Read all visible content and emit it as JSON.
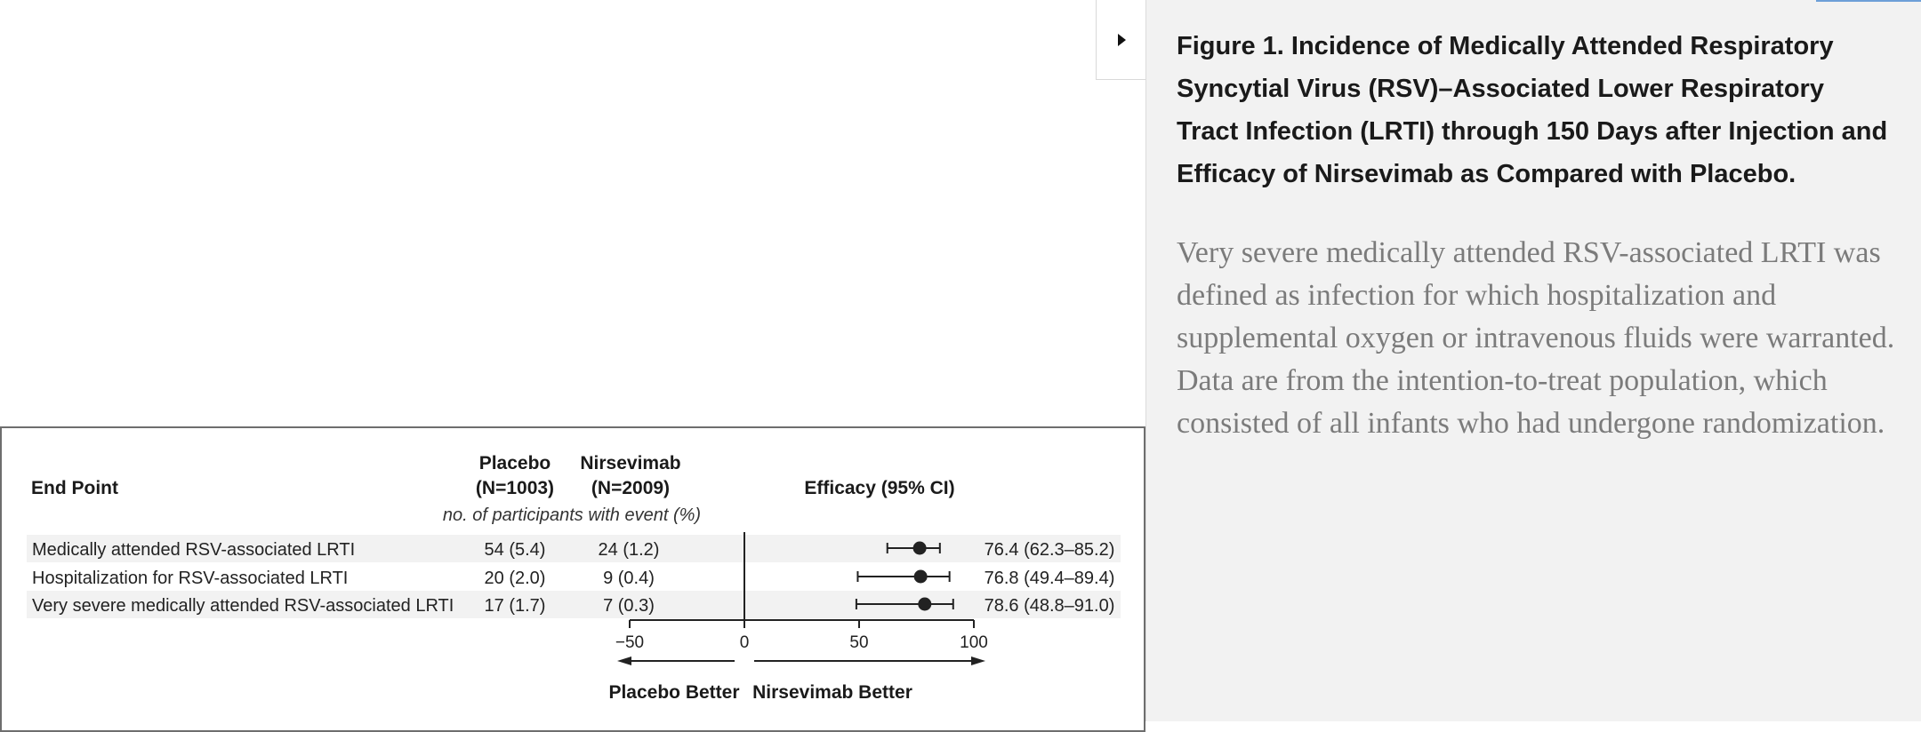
{
  "caption": {
    "title": "Figure 1. Incidence of Medically Attended Respiratory Syncytial Virus (RSV)–Associated Lower Respiratory Tract Infection (LRTI) through 150 Days after Injection and Efficacy of Nirsevimab as Compared with Placebo.",
    "body": "Very severe medically attended RSV-associated LRTI was defined as infection for which hospitalization and supplemental oxygen or intravenous fluids were warranted. Data are from the intention-to-treat population, which consisted of all infants who had undergone randomization."
  },
  "toggle": {
    "icon": "chevron-right-icon"
  },
  "colors": {
    "panel_bg": "#f2f2f2",
    "accent": "#6d9fd8",
    "row_shade": "#f2f2f2",
    "marker": "#222222"
  },
  "table": {
    "col_endpoint": "End Point",
    "col_placebo": [
      "Placebo",
      "(N=1003)"
    ],
    "col_nirsevimab": [
      "Nirsevimab",
      "(N=2009)"
    ],
    "col_efficacy": "Efficacy (95% CI)",
    "subheader": "no. of participants with event (%)",
    "rows": [
      {
        "endpoint": "Medically attended RSV-associated LRTI",
        "placebo": "54 (5.4)",
        "nirsevimab": "24 (1.2)",
        "efficacy_text": "76.4 (62.3–85.2)"
      },
      {
        "endpoint": "Hospitalization for RSV-associated LRTI",
        "placebo": "20 (2.0)",
        "nirsevimab": "9 (0.4)",
        "efficacy_text": "76.8 (49.4–89.4)"
      },
      {
        "endpoint": "Very severe medically attended RSV-associated LRTI",
        "placebo": "17 (1.7)",
        "nirsevimab": "7 (0.3)",
        "efficacy_text": "78.6 (48.8–91.0)"
      }
    ],
    "axis_ticks": [
      "−50",
      "0",
      "50",
      "100"
    ],
    "label_left": "Placebo Better",
    "label_right": "Nirsevimab Better"
  },
  "chart_data": {
    "type": "scatter",
    "categories": [
      "Medically attended RSV-associated LRTI",
      "Hospitalization for RSV-associated LRTI",
      "Very severe medically attended RSV-associated LRTI"
    ],
    "estimates": [
      76.4,
      76.8,
      78.6
    ],
    "ci_low": [
      62.3,
      49.4,
      48.8
    ],
    "ci_high": [
      85.2,
      89.4,
      91.0
    ],
    "xlim": [
      -50,
      100
    ],
    "ticks": [
      -50,
      0,
      50,
      100
    ],
    "reference_line": 0,
    "xlabel_left": "Placebo Better",
    "xlabel_right": "Nirsevimab Better"
  }
}
